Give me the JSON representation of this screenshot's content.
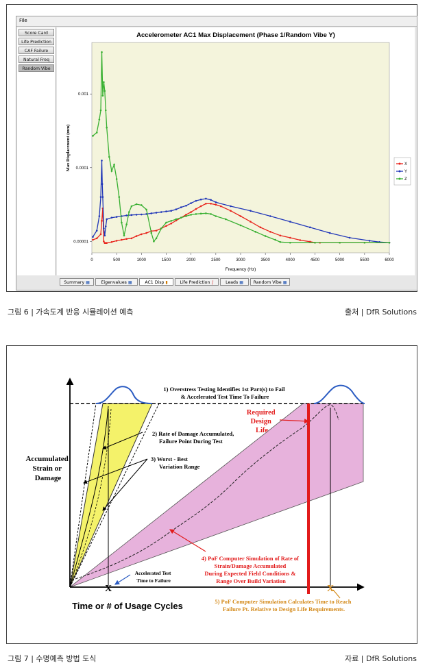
{
  "figure6": {
    "app": {
      "menu_label": "File",
      "sidebar_items": [
        "Score Card",
        "Life Prediction",
        "CAF Failure",
        "Natural Freq",
        "Random Vibe"
      ],
      "active_sidebar": "Random Vibe",
      "bottom_tabs": [
        "Summary",
        "Eigenvalues",
        "AC1 Disp",
        "Life Prediction",
        "Leads",
        "Random Vibe"
      ],
      "active_tab": "AC1 Disp"
    },
    "caption_left": "그림 6 | 가속도계 반응 시뮬레이션 예측",
    "caption_right": "출처 | DfR Solutions"
  },
  "chart_data": {
    "type": "line",
    "title": "Accelerometer AC1 Max Displacement (Phase 1/Random Vibe Y)",
    "xlabel": "Frequency (Hz)",
    "ylabel": "Max Displacement (mm)",
    "xlim": [
      0,
      6000
    ],
    "ylim": [
      7e-06,
      0.005
    ],
    "y_scale": "log",
    "x_ticks": [
      "0",
      "500",
      "1000",
      "1500",
      "2000",
      "2500",
      "3000",
      "3500",
      "4000",
      "4500",
      "5000",
      "5500",
      "6000"
    ],
    "y_ticks": [
      "0.00001",
      "0.0001",
      "0.001"
    ],
    "legend_position": "right",
    "grid": false,
    "background": "#f4f4dc",
    "series": [
      {
        "name": "X",
        "color": "#e8241c",
        "x": [
          20,
          100,
          180,
          200,
          220,
          240,
          260,
          280,
          300,
          400,
          500,
          600,
          700,
          800,
          900,
          1000,
          1100,
          1200,
          1300,
          1400,
          1500,
          1600,
          1700,
          1800,
          1900,
          2000,
          2100,
          2200,
          2300,
          2400,
          2500,
          2600,
          2800,
          3000,
          3200,
          3400,
          3600,
          3800,
          4000,
          4200,
          4400,
          4500,
          4600,
          5000,
          5500,
          6000
        ],
        "y": [
          1.05e-05,
          1.1e-05,
          1.25e-05,
          1.9e-05,
          2.8e-05,
          1e-05,
          9.5e-06,
          9.5e-06,
          9.5e-06,
          9.8e-06,
          1.02e-05,
          1.05e-05,
          1.08e-05,
          1.1e-05,
          1.18e-05,
          1.25e-05,
          1.3e-05,
          1.38e-05,
          1.4e-05,
          1.5e-05,
          1.62e-05,
          1.75e-05,
          1.92e-05,
          2.1e-05,
          2.3e-05,
          2.5e-05,
          2.75e-05,
          3e-05,
          3.25e-05,
          3.25e-05,
          3.15e-05,
          3e-05,
          2.6e-05,
          2.2e-05,
          1.85e-05,
          1.55e-05,
          1.35e-05,
          1.2e-05,
          1.12e-05,
          1.04e-05,
          9.9e-06,
          9.6e-06,
          9.6e-06,
          9.6e-06,
          9.6e-06,
          9.6e-06
        ]
      },
      {
        "name": "Y",
        "color": "#2036b8",
        "x": [
          20,
          100,
          150,
          180,
          200,
          210,
          220,
          240,
          260,
          280,
          300,
          400,
          500,
          600,
          700,
          800,
          900,
          1000,
          1100,
          1200,
          1300,
          1400,
          1500,
          1600,
          1700,
          1800,
          1900,
          2000,
          2100,
          2200,
          2300,
          2400,
          2500,
          2800,
          3200,
          3600,
          4000,
          4400,
          4800,
          5200,
          5600,
          5800,
          6000
        ],
        "y": [
          1.15e-05,
          1.4e-05,
          2.2e-05,
          4e-05,
          0.000125,
          6e-05,
          4e-05,
          1.5e-05,
          1.2e-05,
          1.6e-05,
          2e-05,
          2.1e-05,
          2.15e-05,
          2.2e-05,
          2.25e-05,
          2.28e-05,
          2.3e-05,
          2.32e-05,
          2.35e-05,
          2.4e-05,
          2.45e-05,
          2.5e-05,
          2.55e-05,
          2.6e-05,
          2.72e-05,
          2.9e-05,
          3.05e-05,
          3.3e-05,
          3.55e-05,
          3.7e-05,
          3.8e-05,
          3.65e-05,
          3.4e-05,
          3e-05,
          2.6e-05,
          2.2e-05,
          1.85e-05,
          1.55e-05,
          1.3e-05,
          1.12e-05,
          1.02e-05,
          9.8e-06,
          9.6e-06
        ]
      },
      {
        "name": "Z",
        "color": "#39b032",
        "x": [
          20,
          100,
          150,
          180,
          200,
          220,
          240,
          260,
          280,
          300,
          350,
          400,
          450,
          500,
          550,
          600,
          650,
          700,
          750,
          800,
          900,
          1000,
          1100,
          1200,
          1250,
          1300,
          1400,
          1500,
          1600,
          1700,
          1800,
          1900,
          2000,
          2100,
          2200,
          2300,
          2400,
          2500,
          2700,
          3000,
          3300,
          3500,
          3700,
          3800,
          4000,
          4500,
          5000,
          5500,
          6000
        ],
        "y": [
          0.00027,
          0.0003,
          0.00045,
          0.0006,
          0.0037,
          0.00095,
          0.00145,
          0.0011,
          0.0006,
          0.00035,
          0.00014,
          9e-05,
          0.00011,
          7e-05,
          4e-05,
          1.8e-05,
          1.2e-05,
          1.7e-05,
          2.5e-05,
          3e-05,
          3.2e-05,
          3.1e-05,
          2.7e-05,
          1.3e-05,
          1e-05,
          1.1e-05,
          1.5e-05,
          1.8e-05,
          1.9e-05,
          2e-05,
          2.1e-05,
          2.2e-05,
          2.3e-05,
          2.35e-05,
          2.38e-05,
          2.4e-05,
          2.35e-05,
          2.2e-05,
          2e-05,
          1.65e-05,
          1.35e-05,
          1.18e-05,
          1.05e-05,
          9.8e-06,
          9.6e-06,
          9.6e-06,
          9.6e-06,
          9.6e-06,
          9.6e-06
        ]
      }
    ]
  },
  "figure7": {
    "ylabel": "Accumulated Strain or Damage",
    "xlabel": "Time or # of Usage Cycles",
    "ann1": "1) Overstress Testing Identifies 1st Part(s) to Fail & Accelerated Test Time To Failure",
    "ann2": "2) Rate of Damage Accumulated, Failure Point During Test",
    "ann3": "3) Worst - Best Variation Range",
    "ann4": "4) PoF Computer Simulation of Rate of Strain/Damage Accumulated During Expected Field Conditions & Range Over Build Variation",
    "ann5": "5) PoF Computer Simulation Calculates Time to Reach Failure Pt. Relative to Design Life Requirements.",
    "required_design_life": "Required Design Life",
    "accelerated_test": "Accelerated Test Time to Failure",
    "colors": {
      "yellow": "#f4f26a",
      "pink": "#e7b2dc",
      "red": "#e21b1b",
      "orange": "#d48a1a",
      "blue": "#2a5bc2"
    },
    "caption_left": "그림 7 | 수명예측 방법 도식",
    "caption_right": "자료 | DfR Solutions"
  }
}
